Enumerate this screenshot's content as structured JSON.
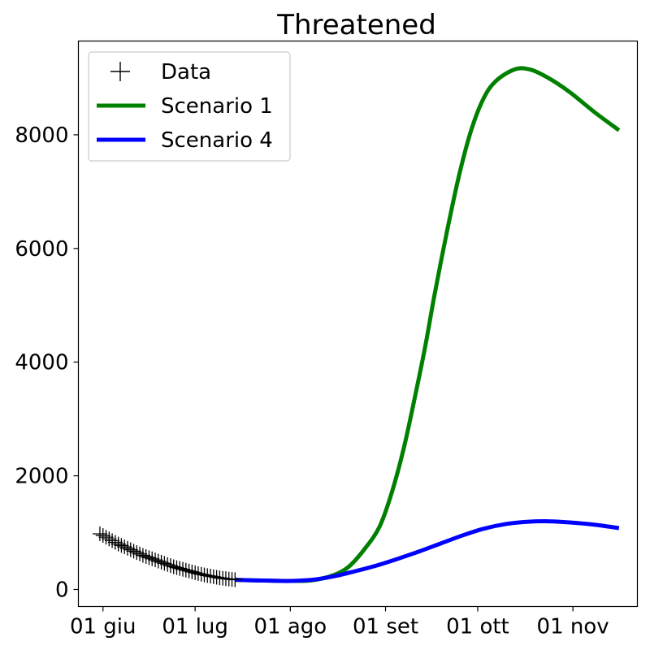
{
  "chart_data": {
    "type": "line",
    "title": "Threatened",
    "xlabel": "",
    "ylabel": "",
    "x_ticks": [
      {
        "date": "2020-06-01",
        "label": "01 giu"
      },
      {
        "date": "2020-07-01",
        "label": "01 lug"
      },
      {
        "date": "2020-08-01",
        "label": "01 ago"
      },
      {
        "date": "2020-09-01",
        "label": "01 set"
      },
      {
        "date": "2020-10-01",
        "label": "01 ott"
      },
      {
        "date": "2020-11-01",
        "label": "01 nov"
      }
    ],
    "y_ticks": [
      0,
      2000,
      4000,
      6000,
      8000
    ],
    "xlim": [
      "2020-05-24",
      "2020-11-22"
    ],
    "ylim": [
      -300,
      9650
    ],
    "grid": false,
    "legend_position": "top-left",
    "legend": [
      "Data",
      "Scenario 1",
      "Scenario 4"
    ],
    "series": [
      {
        "name": "Data",
        "style": "marker-plus",
        "color": "#000000",
        "points": [
          [
            "2020-05-31",
            980
          ],
          [
            "2020-06-01",
            950
          ],
          [
            "2020-06-02",
            920
          ],
          [
            "2020-06-03",
            890
          ],
          [
            "2020-06-04",
            860
          ],
          [
            "2020-06-05",
            830
          ],
          [
            "2020-06-06",
            800
          ],
          [
            "2020-06-07",
            775
          ],
          [
            "2020-06-08",
            750
          ],
          [
            "2020-06-09",
            725
          ],
          [
            "2020-06-10",
            700
          ],
          [
            "2020-06-11",
            675
          ],
          [
            "2020-06-12",
            650
          ],
          [
            "2020-06-13",
            625
          ],
          [
            "2020-06-14",
            600
          ],
          [
            "2020-06-15",
            580
          ],
          [
            "2020-06-16",
            560
          ],
          [
            "2020-06-17",
            540
          ],
          [
            "2020-06-18",
            520
          ],
          [
            "2020-06-19",
            500
          ],
          [
            "2020-06-20",
            480
          ],
          [
            "2020-06-21",
            460
          ],
          [
            "2020-06-22",
            440
          ],
          [
            "2020-06-23",
            420
          ],
          [
            "2020-06-24",
            400
          ],
          [
            "2020-06-25",
            385
          ],
          [
            "2020-06-26",
            370
          ],
          [
            "2020-06-27",
            355
          ],
          [
            "2020-06-28",
            340
          ],
          [
            "2020-06-29",
            325
          ],
          [
            "2020-06-30",
            310
          ],
          [
            "2020-07-01",
            295
          ],
          [
            "2020-07-02",
            280
          ],
          [
            "2020-07-03",
            268
          ],
          [
            "2020-07-04",
            256
          ],
          [
            "2020-07-05",
            245
          ],
          [
            "2020-07-06",
            235
          ],
          [
            "2020-07-07",
            225
          ],
          [
            "2020-07-08",
            215
          ],
          [
            "2020-07-09",
            205
          ],
          [
            "2020-07-10",
            197
          ],
          [
            "2020-07-11",
            190
          ],
          [
            "2020-07-12",
            183
          ],
          [
            "2020-07-13",
            177
          ],
          [
            "2020-07-14",
            172
          ]
        ]
      },
      {
        "name": "Scenario 1",
        "style": "line",
        "color": "#008000",
        "points": [
          [
            "2020-07-14",
            170
          ],
          [
            "2020-07-21",
            160
          ],
          [
            "2020-07-28",
            152
          ],
          [
            "2020-08-01",
            150
          ],
          [
            "2020-08-08",
            160
          ],
          [
            "2020-08-15",
            250
          ],
          [
            "2020-08-20",
            400
          ],
          [
            "2020-08-25",
            700
          ],
          [
            "2020-08-30",
            1100
          ],
          [
            "2020-09-03",
            1700
          ],
          [
            "2020-09-07",
            2500
          ],
          [
            "2020-09-11",
            3500
          ],
          [
            "2020-09-14",
            4300
          ],
          [
            "2020-09-17",
            5200
          ],
          [
            "2020-09-21",
            6300
          ],
          [
            "2020-09-25",
            7300
          ],
          [
            "2020-09-29",
            8100
          ],
          [
            "2020-10-03",
            8650
          ],
          [
            "2020-10-07",
            8950
          ],
          [
            "2020-10-13",
            9150
          ],
          [
            "2020-10-18",
            9150
          ],
          [
            "2020-10-24",
            9000
          ],
          [
            "2020-10-31",
            8750
          ],
          [
            "2020-11-08",
            8400
          ],
          [
            "2020-11-16",
            8080
          ]
        ]
      },
      {
        "name": "Scenario 4",
        "style": "line",
        "color": "#0000ff",
        "points": [
          [
            "2020-07-14",
            170
          ],
          [
            "2020-07-21",
            160
          ],
          [
            "2020-07-28",
            152
          ],
          [
            "2020-08-01",
            150
          ],
          [
            "2020-08-08",
            170
          ],
          [
            "2020-08-15",
            230
          ],
          [
            "2020-08-22",
            320
          ],
          [
            "2020-08-29",
            420
          ],
          [
            "2020-09-05",
            540
          ],
          [
            "2020-09-12",
            670
          ],
          [
            "2020-09-19",
            810
          ],
          [
            "2020-09-26",
            950
          ],
          [
            "2020-10-03",
            1070
          ],
          [
            "2020-10-10",
            1150
          ],
          [
            "2020-10-17",
            1190
          ],
          [
            "2020-10-24",
            1200
          ],
          [
            "2020-10-31",
            1180
          ],
          [
            "2020-11-08",
            1140
          ],
          [
            "2020-11-16",
            1080
          ]
        ]
      }
    ]
  }
}
